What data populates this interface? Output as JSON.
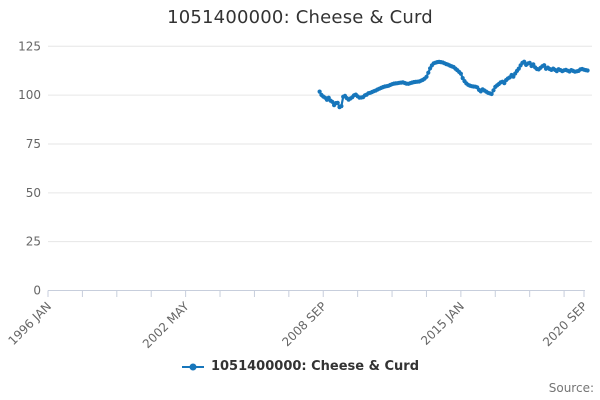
{
  "title": "1051400000: Cheese & Curd",
  "legend": {
    "label": "1051400000: Cheese & Curd"
  },
  "source_label": "Source:",
  "colors": {
    "line": "#1776bb",
    "grid": "#e6e6e6",
    "axis": "#c7cedc",
    "tick_label": "#666666",
    "title_text": "#333333",
    "legend_text": "#333333",
    "source_text": "#757575"
  },
  "chart_data": {
    "type": "line",
    "title": "1051400000: Cheese & Curd",
    "grid": "horizontal-only",
    "legend_position": "bottom-center",
    "y_axis": {
      "min": 0,
      "max": 125,
      "tick_interval": 25,
      "ticks": [
        0,
        25,
        50,
        75,
        100,
        125
      ]
    },
    "x_axis": {
      "domain_months": [
        0,
        296
      ],
      "tick_months": [
        0,
        19,
        38,
        57,
        76,
        95,
        114,
        133,
        152,
        171,
        190,
        209,
        228,
        247,
        266,
        285,
        296
      ],
      "labels": [
        {
          "month": 0,
          "text": "1996 JAN"
        },
        {
          "month": 76,
          "text": "2002 MAY"
        },
        {
          "month": 152,
          "text": "2008 SEP"
        },
        {
          "month": 228,
          "text": "2015 JAN"
        },
        {
          "month": 296,
          "text": "2020 SEP"
        }
      ]
    },
    "series": [
      {
        "name": "1051400000: Cheese & Curd",
        "color": "#1776bb",
        "start_month_offset": 150,
        "monthly_values": [
          101.8,
          100.1,
          99.3,
          98.7,
          97.6,
          98.7,
          97.2,
          96.6,
          94.9,
          95.9,
          96.1,
          93.9,
          94.4,
          99.2,
          99.6,
          98.5,
          97.7,
          98.3,
          98.9,
          99.9,
          100.3,
          99.4,
          98.7,
          98.8,
          99.0,
          99.9,
          100.3,
          101.0,
          101.2,
          101.6,
          102.0,
          102.4,
          102.9,
          103.3,
          103.7,
          104.1,
          104.4,
          104.6,
          104.8,
          105.2,
          105.6,
          105.9,
          106.0,
          106.1,
          106.3,
          106.4,
          106.5,
          106.2,
          105.9,
          105.8,
          106.1,
          106.4,
          106.7,
          106.8,
          106.9,
          107.0,
          107.4,
          107.8,
          108.4,
          109.4,
          111.5,
          113.7,
          115.2,
          116.3,
          116.6,
          116.9,
          117.0,
          116.9,
          116.7,
          116.3,
          115.9,
          115.6,
          115.1,
          114.7,
          114.4,
          113.6,
          112.8,
          111.9,
          111.0,
          108.7,
          107.2,
          106.0,
          105.3,
          104.9,
          104.6,
          104.4,
          104.3,
          104.0,
          102.7,
          101.9,
          103.0,
          102.4,
          101.8,
          101.2,
          100.9,
          100.6,
          102.5,
          104.2,
          105.0,
          105.7,
          106.5,
          106.9,
          106.1,
          107.7,
          108.5,
          109.1,
          110.3,
          109.5,
          111.1,
          112.4,
          113.6,
          115.2,
          116.5,
          117.1,
          115.5,
          116.2,
          116.5,
          114.9,
          115.8,
          114.2,
          113.4,
          113.2,
          114.0,
          114.8,
          115.3,
          113.5,
          114.1,
          113.4,
          112.9,
          113.6,
          112.9,
          112.3,
          113.3,
          112.8,
          112.3,
          112.7,
          112.9,
          112.5,
          112.1,
          112.8,
          112.4,
          112.0,
          112.2,
          112.4,
          113.2,
          113.4,
          113.0,
          112.8,
          112.6
        ]
      }
    ]
  }
}
